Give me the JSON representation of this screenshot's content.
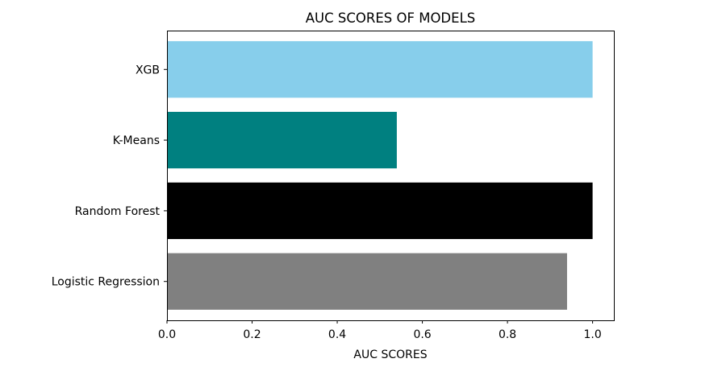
{
  "chart_data": {
    "type": "bar",
    "orientation": "horizontal",
    "title": "AUC SCORES OF MODELS",
    "xlabel": "AUC SCORES",
    "ylabel": "",
    "categories": [
      "Logistic Regression",
      "Random Forest",
      "K-Means",
      "XGB"
    ],
    "values": [
      0.94,
      1.0,
      0.54,
      1.0
    ],
    "colors": [
      "#808080",
      "#000000",
      "#008080",
      "#87ceeb"
    ],
    "xlim": [
      0.0,
      1.05
    ],
    "xticks": [
      0.0,
      0.2,
      0.4,
      0.6,
      0.8,
      1.0
    ],
    "xtick_labels": [
      "0.0",
      "0.2",
      "0.4",
      "0.6",
      "0.8",
      "1.0"
    ],
    "grid": false,
    "legend": "none"
  }
}
